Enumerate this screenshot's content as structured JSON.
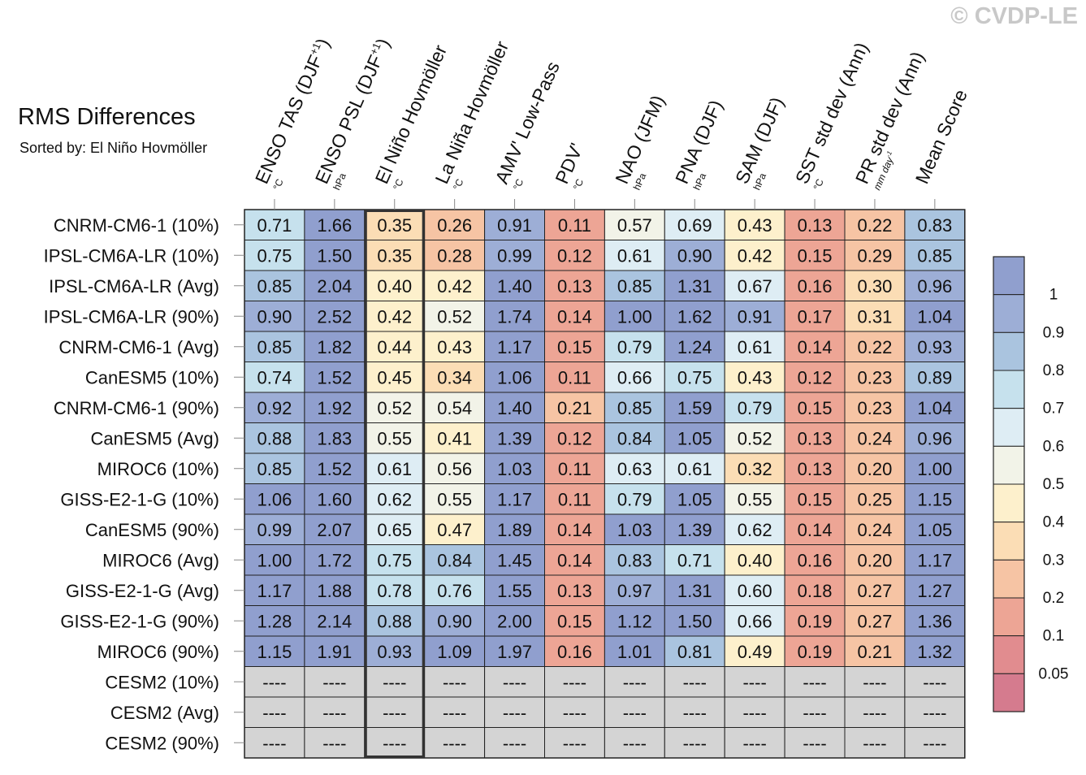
{
  "watermark": "© CVDP-LE",
  "chart_data": {
    "type": "heatmap",
    "title": "RMS Differences",
    "subtitle": "Sorted by: El Niño Hovmöller",
    "columns": [
      {
        "label": "ENSO TAS (DJF+1)",
        "unit": "°C"
      },
      {
        "label": "ENSO PSL (DJF+1)",
        "unit": "hPa"
      },
      {
        "label": "El Niño Hovmöller",
        "unit": "°C"
      },
      {
        "label": "La Niña Hovmöller",
        "unit": "°C"
      },
      {
        "label": "AMV' Low-Pass",
        "unit": "°C"
      },
      {
        "label": "PDV'",
        "unit": "°C"
      },
      {
        "label": "NAO (JFM)",
        "unit": "hPa"
      },
      {
        "label": "PNA (DJF)",
        "unit": "hPa"
      },
      {
        "label": "SAM (DJF)",
        "unit": "hPa"
      },
      {
        "label": "SST std dev (Ann)",
        "unit": "°C"
      },
      {
        "label": "PR std dev (Ann)",
        "unit": "mm day-1"
      },
      {
        "label": "Mean Score",
        "unit": ""
      }
    ],
    "highlighted_column": "El Niño Hovmöller",
    "rows": [
      "CNRM-CM6-1 (10%)",
      "IPSL-CM6A-LR (10%)",
      "IPSL-CM6A-LR (Avg)",
      "IPSL-CM6A-LR (90%)",
      "CNRM-CM6-1 (Avg)",
      "CanESM5 (10%)",
      "CNRM-CM6-1 (90%)",
      "CanESM5 (Avg)",
      "MIROC6 (10%)",
      "GISS-E2-1-G (10%)",
      "CanESM5 (90%)",
      "MIROC6 (Avg)",
      "GISS-E2-1-G (Avg)",
      "GISS-E2-1-G (90%)",
      "MIROC6 (90%)",
      "CESM2 (10%)",
      "CESM2 (Avg)",
      "CESM2 (90%)"
    ],
    "values": [
      [
        0.71,
        1.66,
        0.35,
        0.26,
        0.91,
        0.11,
        0.57,
        0.69,
        0.43,
        0.13,
        0.22,
        0.83
      ],
      [
        0.75,
        1.5,
        0.35,
        0.28,
        0.99,
        0.12,
        0.61,
        0.9,
        0.42,
        0.15,
        0.29,
        0.85
      ],
      [
        0.85,
        2.04,
        0.4,
        0.42,
        1.4,
        0.13,
        0.85,
        1.31,
        0.67,
        0.16,
        0.3,
        0.96
      ],
      [
        0.9,
        2.52,
        0.42,
        0.52,
        1.74,
        0.14,
        1.0,
        1.62,
        0.91,
        0.17,
        0.31,
        1.04
      ],
      [
        0.85,
        1.82,
        0.44,
        0.43,
        1.17,
        0.15,
        0.79,
        1.24,
        0.61,
        0.14,
        0.22,
        0.93
      ],
      [
        0.74,
        1.52,
        0.45,
        0.34,
        1.06,
        0.11,
        0.66,
        0.75,
        0.43,
        0.12,
        0.23,
        0.89
      ],
      [
        0.92,
        1.92,
        0.52,
        0.54,
        1.4,
        0.21,
        0.85,
        1.59,
        0.79,
        0.15,
        0.23,
        1.04
      ],
      [
        0.88,
        1.83,
        0.55,
        0.41,
        1.39,
        0.12,
        0.84,
        1.05,
        0.52,
        0.13,
        0.24,
        0.96
      ],
      [
        0.85,
        1.52,
        0.61,
        0.56,
        1.03,
        0.11,
        0.63,
        0.61,
        0.32,
        0.13,
        0.2,
        1.0
      ],
      [
        1.06,
        1.6,
        0.62,
        0.55,
        1.17,
        0.11,
        0.79,
        1.05,
        0.55,
        0.15,
        0.25,
        1.15
      ],
      [
        0.99,
        2.07,
        0.65,
        0.47,
        1.89,
        0.14,
        1.03,
        1.39,
        0.62,
        0.14,
        0.24,
        1.05
      ],
      [
        1.0,
        1.72,
        0.75,
        0.84,
        1.45,
        0.14,
        0.83,
        0.71,
        0.4,
        0.16,
        0.2,
        1.17
      ],
      [
        1.17,
        1.88,
        0.78,
        0.76,
        1.55,
        0.13,
        0.97,
        1.31,
        0.6,
        0.18,
        0.27,
        1.27
      ],
      [
        1.28,
        2.14,
        0.88,
        0.9,
        2.0,
        0.15,
        1.12,
        1.5,
        0.66,
        0.19,
        0.27,
        1.36
      ],
      [
        1.15,
        1.91,
        0.93,
        1.09,
        1.97,
        0.16,
        1.01,
        0.81,
        0.49,
        0.19,
        0.21,
        1.32
      ],
      [
        null,
        null,
        null,
        null,
        null,
        null,
        null,
        null,
        null,
        null,
        null,
        null
      ],
      [
        null,
        null,
        null,
        null,
        null,
        null,
        null,
        null,
        null,
        null,
        null,
        null
      ],
      [
        null,
        null,
        null,
        null,
        null,
        null,
        null,
        null,
        null,
        null,
        null,
        null
      ]
    ],
    "missing_label": "----",
    "colorbar": {
      "levels": [
        0.05,
        0.1,
        0.2,
        0.3,
        0.4,
        0.5,
        0.6,
        0.7,
        0.8,
        0.9,
        1
      ],
      "labels": [
        "0.05",
        "0.1",
        "0.2",
        "0.3",
        "0.4",
        "0.5",
        "0.6",
        "0.7",
        "0.8",
        "0.9",
        "1"
      ],
      "colors": [
        "#d57b8e",
        "#e18c8f",
        "#eda595",
        "#f6c4a4",
        "#fbddb5",
        "#fdf0cc",
        "#f2f3e8",
        "#deedf4",
        "#c6e1ed",
        "#aac4df",
        "#9daed6",
        "#909fce"
      ],
      "missing_color": "#d4d4d4"
    }
  }
}
